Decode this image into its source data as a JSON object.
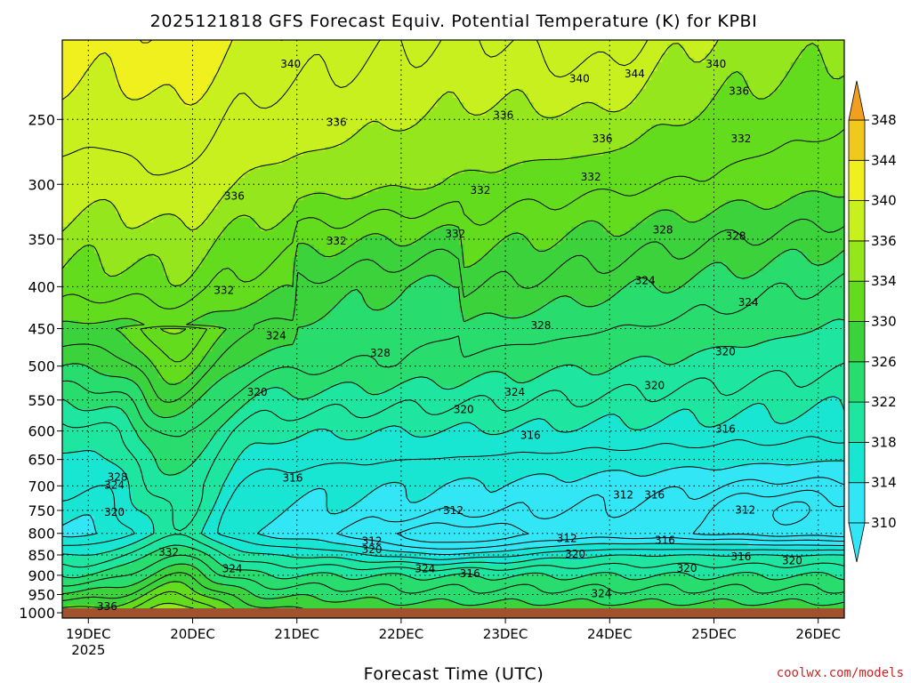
{
  "chart_data": {
    "type": "heatmap",
    "title": "2025121818 GFS Forecast Equiv. Potential Temperature (K) for KPBI",
    "xlabel": "Forecast Time (UTC)",
    "ylabel": "",
    "y_axis": {
      "scale": "log-pressure",
      "ticks": [
        250,
        300,
        350,
        400,
        450,
        500,
        550,
        600,
        650,
        700,
        750,
        800,
        850,
        900,
        950,
        1000
      ],
      "tick_labels": [
        "250",
        "300",
        "350",
        "400",
        "450",
        "500",
        "550",
        "600",
        "650",
        "700",
        "750",
        "800",
        "850",
        "900",
        "950",
        "1000"
      ],
      "range": [
        200,
        1015
      ],
      "inverted": true
    },
    "x_axis": {
      "ticks": [
        0,
        1,
        2,
        3,
        4,
        5,
        6,
        7
      ],
      "tick_labels": [
        "19DEC",
        "20DEC",
        "21DEC",
        "22DEC",
        "23DEC",
        "24DEC",
        "25DEC",
        "26DEC"
      ],
      "year_label": "2025",
      "range": [
        -0.25,
        7.25
      ]
    },
    "colorbar": {
      "labels": [
        "310",
        "314",
        "318",
        "322",
        "326",
        "330",
        "334",
        "336",
        "340",
        "344",
        "348"
      ],
      "colors": [
        "#33e6f5",
        "#19e6d2",
        "#1ee6a0",
        "#28dc6e",
        "#3cd23c",
        "#64dc1e",
        "#96e61e",
        "#c8f01e",
        "#f0f01e",
        "#f0c81e",
        "#f0a01e"
      ],
      "min_arrow_color": "#33e6f5",
      "max_arrow_color": "#f0a01e"
    },
    "surface_color": "#a0522d",
    "contour_labels": [
      {
        "text": "340",
        "x": 1.94,
        "p": 214
      },
      {
        "text": "340",
        "x": 4.71,
        "p": 223
      },
      {
        "text": "340",
        "x": 6.02,
        "p": 214
      },
      {
        "text": "344",
        "x": 5.24,
        "p": 220
      },
      {
        "text": "336",
        "x": 6.24,
        "p": 231
      },
      {
        "text": "332",
        "x": 6.26,
        "p": 264
      },
      {
        "text": "336",
        "x": 2.38,
        "p": 252
      },
      {
        "text": "336",
        "x": 3.98,
        "p": 247
      },
      {
        "text": "336",
        "x": 4.93,
        "p": 264
      },
      {
        "text": "336",
        "x": 1.4,
        "p": 310
      },
      {
        "text": "332",
        "x": 3.76,
        "p": 305
      },
      {
        "text": "332",
        "x": 4.82,
        "p": 294
      },
      {
        "text": "332",
        "x": 2.38,
        "p": 352
      },
      {
        "text": "332",
        "x": 3.52,
        "p": 345
      },
      {
        "text": "328",
        "x": 5.51,
        "p": 341
      },
      {
        "text": "328",
        "x": 6.21,
        "p": 347
      },
      {
        "text": "332",
        "x": 1.3,
        "p": 404
      },
      {
        "text": "324",
        "x": 5.34,
        "p": 393
      },
      {
        "text": "324",
        "x": 6.33,
        "p": 418
      },
      {
        "text": "328",
        "x": 4.34,
        "p": 446
      },
      {
        "text": "324",
        "x": 1.8,
        "p": 459
      },
      {
        "text": "328",
        "x": 2.8,
        "p": 482
      },
      {
        "text": "320",
        "x": 6.11,
        "p": 480
      },
      {
        "text": "320",
        "x": 5.43,
        "p": 528
      },
      {
        "text": "324",
        "x": 4.09,
        "p": 538
      },
      {
        "text": "320",
        "x": 1.62,
        "p": 538
      },
      {
        "text": "320",
        "x": 3.6,
        "p": 565
      },
      {
        "text": "316",
        "x": 4.24,
        "p": 607
      },
      {
        "text": "316",
        "x": 6.11,
        "p": 597
      },
      {
        "text": "316",
        "x": 1.96,
        "p": 685
      },
      {
        "text": "328",
        "x": 0.28,
        "p": 683
      },
      {
        "text": "324",
        "x": 0.25,
        "p": 699
      },
      {
        "text": "320",
        "x": 0.25,
        "p": 754
      },
      {
        "text": "312",
        "x": 3.5,
        "p": 750
      },
      {
        "text": "312",
        "x": 5.13,
        "p": 718
      },
      {
        "text": "316",
        "x": 5.43,
        "p": 718
      },
      {
        "text": "312",
        "x": 6.3,
        "p": 749
      },
      {
        "text": "312",
        "x": 2.72,
        "p": 818
      },
      {
        "text": "312",
        "x": 4.59,
        "p": 812
      },
      {
        "text": "320",
        "x": 2.72,
        "p": 837
      },
      {
        "text": "316",
        "x": 5.53,
        "p": 816
      },
      {
        "text": "320",
        "x": 4.67,
        "p": 848
      },
      {
        "text": "332",
        "x": 0.77,
        "p": 844
      },
      {
        "text": "324",
        "x": 1.38,
        "p": 884
      },
      {
        "text": "324",
        "x": 3.23,
        "p": 884
      },
      {
        "text": "316",
        "x": 3.66,
        "p": 896
      },
      {
        "text": "316",
        "x": 6.26,
        "p": 854
      },
      {
        "text": "320",
        "x": 6.75,
        "p": 864
      },
      {
        "text": "320",
        "x": 5.74,
        "p": 883
      },
      {
        "text": "324",
        "x": 4.92,
        "p": 947
      },
      {
        "text": "336",
        "x": 0.18,
        "p": 982
      }
    ]
  },
  "credit": "coolwx.com/models"
}
